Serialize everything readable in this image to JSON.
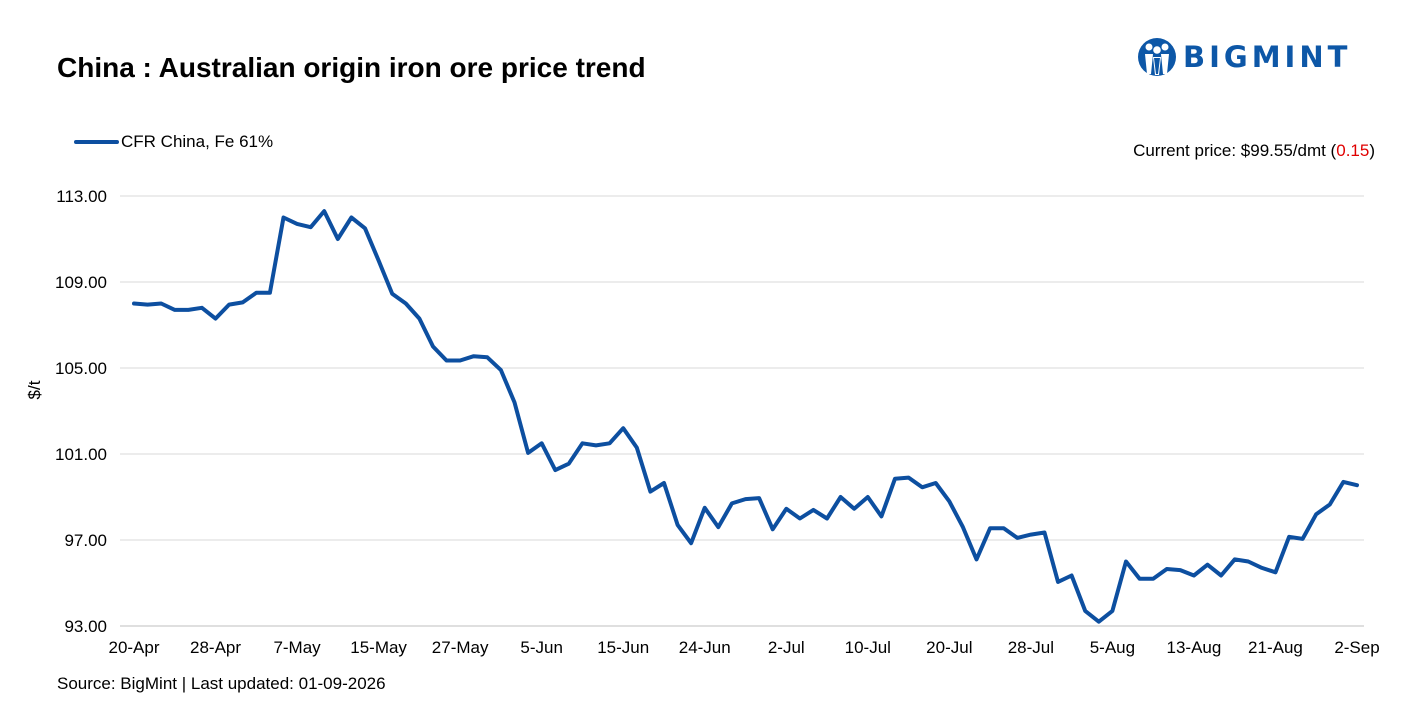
{
  "header": {
    "title": "China : Australian origin iron ore price trend",
    "logo_text": "BIGMINT"
  },
  "current_price": {
    "prefix": "Current price: $99.55/dmt (",
    "change": "0.15",
    "suffix": ")"
  },
  "footer": {
    "source": "Source: BigMint | Last updated: 01-09-2026"
  },
  "colors": {
    "series": "#0d4fa0",
    "logo": "#0d57a7",
    "change": "#e00000",
    "grid": "#d9d9d9"
  },
  "chart_data": {
    "type": "line",
    "title": "China : Australian origin iron ore price trend",
    "ylabel": "$/t",
    "xlabel": "",
    "ylim": [
      93,
      113
    ],
    "yticks": [
      "113.00",
      "109.00",
      "105.00",
      "101.00",
      "97.00",
      "93.00"
    ],
    "xtick_labels": [
      "20-Apr",
      "28-Apr",
      "7-May",
      "15-May",
      "27-May",
      "5-Jun",
      "15-Jun",
      "24-Jun",
      "2-Jul",
      "10-Jul",
      "20-Jul",
      "28-Jul",
      "5-Aug",
      "13-Aug",
      "21-Aug",
      "2-Sep"
    ],
    "grid": true,
    "legend_position": "top-left",
    "series": [
      {
        "name": "CFR China, Fe 61%",
        "values": [
          108.0,
          107.95,
          108.0,
          107.7,
          107.7,
          107.8,
          107.3,
          107.95,
          108.05,
          108.5,
          108.5,
          112.0,
          111.7,
          111.55,
          112.3,
          111.0,
          112.0,
          111.5,
          110.0,
          108.45,
          108.0,
          107.3,
          106.0,
          105.35,
          105.35,
          105.55,
          105.5,
          104.9,
          103.4,
          101.05,
          101.5,
          100.25,
          100.55,
          101.5,
          101.4,
          101.5,
          102.2,
          101.3,
          99.25,
          99.65,
          97.7,
          96.85,
          98.5,
          97.6,
          98.7,
          98.9,
          98.95,
          97.5,
          98.45,
          98.0,
          98.4,
          98.0,
          99.0,
          98.45,
          99.0,
          98.1,
          99.85,
          99.9,
          99.45,
          99.65,
          98.8,
          97.6,
          96.1,
          97.55,
          97.55,
          97.1,
          97.25,
          97.35,
          95.05,
          95.35,
          93.7,
          93.2,
          93.7,
          96.0,
          95.2,
          95.2,
          95.65,
          95.6,
          95.35,
          95.85,
          95.35,
          96.1,
          96.0,
          95.7,
          95.5,
          97.15,
          97.05,
          98.2,
          98.65,
          99.7,
          99.55
        ]
      }
    ]
  }
}
